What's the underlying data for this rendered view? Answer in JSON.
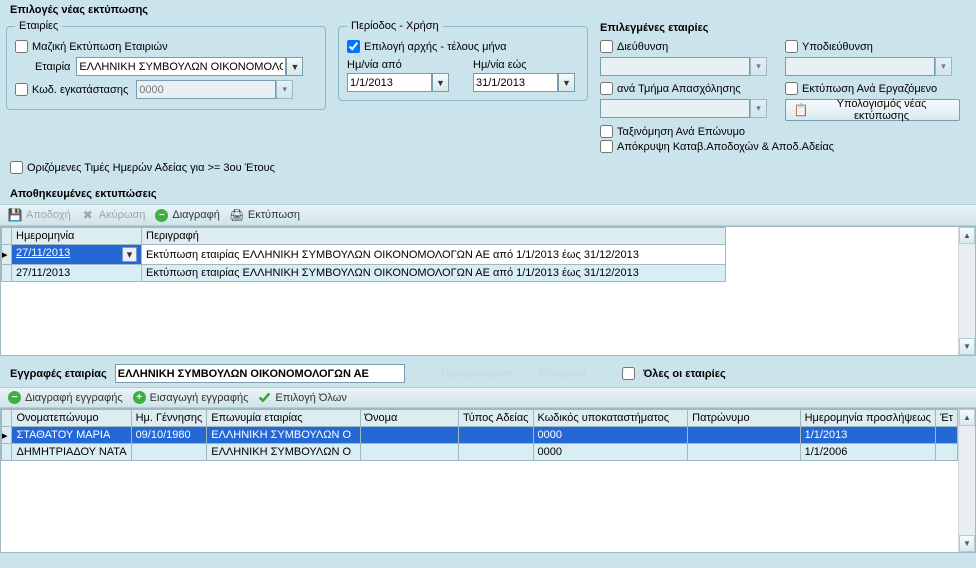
{
  "title": "Επιλογές νέας εκτύπωσης",
  "companies_fs": {
    "legend": "Εταιρίες",
    "bulk_print": "Μαζική Εκτύπωση Εταιριών",
    "company_label": "Εταιρία",
    "company_value": "ΕΛΛΗΝΙΚΗ ΣΥΜΒΟΥΛΩΝ ΟΙΚΟΝΟΜΟΛΟΓΩ",
    "install_code_label": "Κωδ. εγκατάστασης",
    "install_code_value": "0000"
  },
  "period_fs": {
    "legend": "Περίοδος - Χρήση",
    "range_check": "Επιλογή αρχής - τέλους μήνα",
    "date_from_label": "Ημ/νία από",
    "date_from": "1/1/2013",
    "date_to_label": "Ημ/νία εώς",
    "date_to": "31/1/2013"
  },
  "selected": {
    "title": "Επιλεγμένες εταιρίες",
    "direction": "Διεύθυνση",
    "subdirection": "Υποδιεύθυνση",
    "by_dept": "ανά Τμήμα Απασχόλησης",
    "per_employee": "Εκτύπωση Ανά Εργαζόμενο",
    "sort_surname": "Ταξινόμηση Ανά Επώνυμο",
    "hide_payroll": "Απόκρυψη Καταβ.Αποδοχών & Αποδ.Αδείας",
    "calc_btn": "Υπολογισμός νέας εκτύπωσης"
  },
  "row3_check": "Οριζόμενες Τιμές Ημερών Αδείας  για >= 3ου Έτους",
  "saved": {
    "title": "Αποθηκευμένες εκτυπώσεις",
    "accept": "Αποδοχή",
    "cancel": "Ακύρωση",
    "delete": "Διαγραφή",
    "print": "Εκτύπωση",
    "col_date": "Ημερομηνία",
    "col_desc": "Περιγραφή",
    "rows": [
      {
        "date": "27/11/2013",
        "desc": "Εκτύπωση εταιρίας ΕΛΛΗΝΙΚΗ ΣΥΜΒΟΥΛΩΝ ΟΙΚΟΝΟΜΟΛΟΓΩΝ ΑΕ από 1/1/2013 έως 31/12/2013",
        "selected": true
      },
      {
        "date": "27/11/2013",
        "desc": "Εκτύπωση εταιρίας ΕΛΛΗΝΙΚΗ ΣΥΜΒΟΥΛΩΝ ΟΙΚΟΝΟΜΟΛΟΓΩΝ ΑΕ από 1/1/2013 έως 31/12/2013",
        "selected": false
      }
    ]
  },
  "records": {
    "title": "Εγγραφές εταιρίας",
    "company": "ΕΛΛΗΝΙΚΗ ΣΥΜΒΟΥΛΩΝ ΟΙΚΟΝΟΜΟΛΟΓΩΝ ΑΕ",
    "prev": "Προηγούμενη",
    "next": "Επόμενη",
    "all": "Όλες οι εταιρίες",
    "del_row": "Διαγραφή εγγραφής",
    "ins_row": "Εισαγωγή εγγραφής",
    "select_all": "Επιλογή Όλων",
    "cols": {
      "name": "Ονοματεπώνυμο",
      "dob": "Ημ. Γέννησης",
      "corp": "Επωνυμία εταιρίας",
      "oname": "Όνομα",
      "leave_type": "Τύπος Αδείας",
      "branch": "Κωδικός υποκαταστήματος",
      "father": "Πατρώνυμο",
      "hire": "Ημερομηνία προσλήψεως",
      "year": "Έτ"
    },
    "rows": [
      {
        "name": "ΣΤΑΘΑΤΟΥ ΜΑΡΙΑ",
        "dob": "09/10/1980",
        "corp": "ΕΛΛΗΝΙΚΗ ΣΥΜΒΟΥΛΩΝ Ο",
        "oname": "",
        "leave": "",
        "branch": "0000",
        "father": "",
        "hire": "1/1/2013",
        "selected": true
      },
      {
        "name": "ΔΗΜΗΤΡΙΑΔΟΥ ΝΑΤΑ",
        "dob": "",
        "corp": "ΕΛΛΗΝΙΚΗ ΣΥΜΒΟΥΛΩΝ Ο",
        "oname": "",
        "leave": "",
        "branch": "0000",
        "father": "",
        "hire": "1/1/2006",
        "selected": false
      }
    ]
  }
}
